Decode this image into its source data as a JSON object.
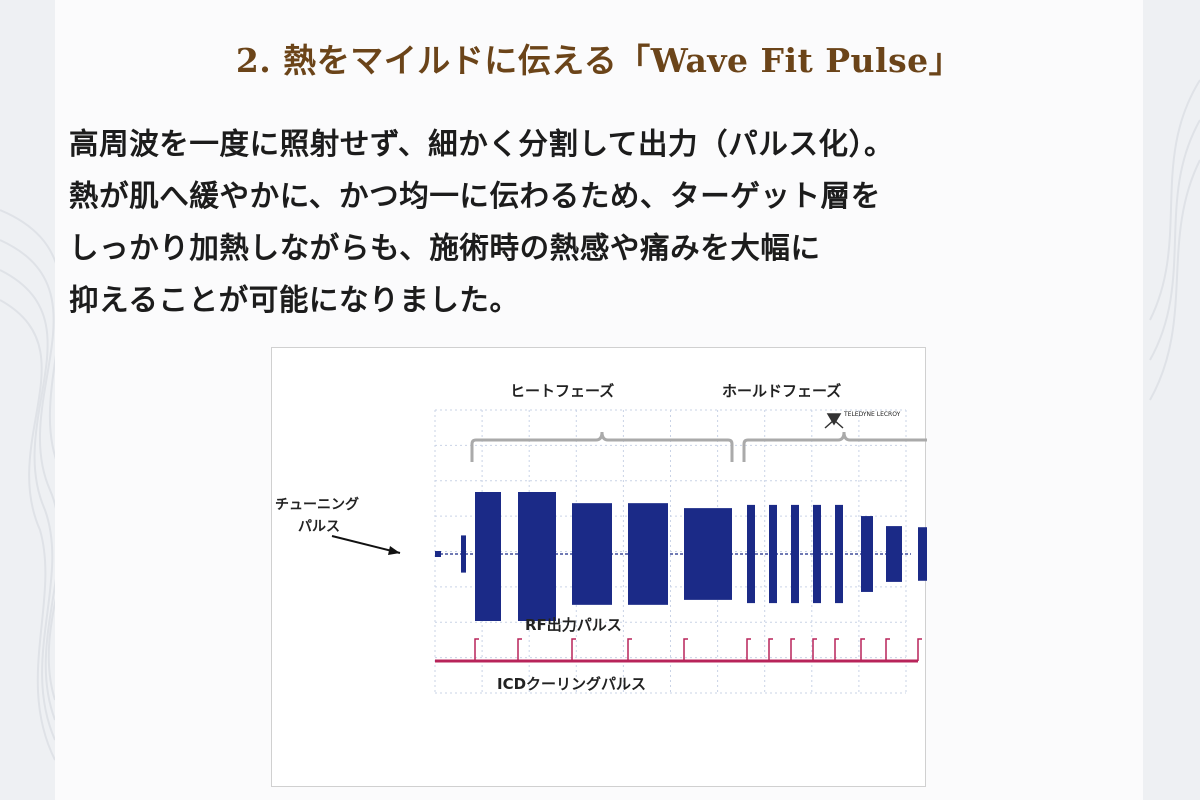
{
  "title": "2. 熱をマイルドに伝える「Wave Fit Pulse」",
  "body_lines": [
    "高周波を一度に照射せず、細かく分割して出力（パルス化）。",
    "熱が肌へ緩やかに、かつ均一に伝わるため、ターゲット層を",
    "しっかり加熱しながらも、施術時の熱感や痛みを大幅に",
    "抑えることが可能になりました。"
  ],
  "figure": {
    "heat_phase_label": "ヒートフェーズ",
    "hold_phase_label": "ホールドフェーズ",
    "tuning_pulse_label_1": "チューニング",
    "tuning_pulse_label_2": "パルス",
    "rf_output_label": "RF出力パルス",
    "icd_cooling_label": "ICDクーリングパルス",
    "logo_text": "TELEDYNE LECROY",
    "colors": {
      "rf_pulse": "#1b2a87",
      "cooling_pulse": "#b8245a",
      "grid": "#c9d3e6",
      "brace": "#aaaaaa"
    },
    "pulse_amplitudes": {
      "tuning": 0.3,
      "heat": [
        1.0,
        1.0,
        0.82,
        0.82,
        0.74
      ],
      "hold": [
        0.88,
        0.88,
        0.88,
        0.88,
        0.88,
        0.68,
        0.5,
        0.48
      ]
    }
  }
}
